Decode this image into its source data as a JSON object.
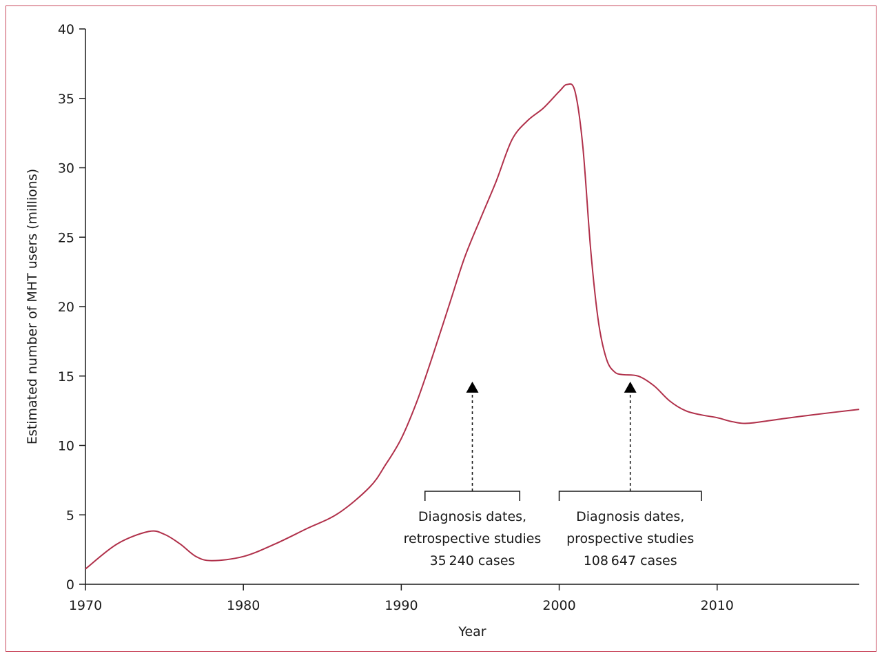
{
  "chart_data": {
    "type": "line",
    "title": "",
    "xlabel": "Year",
    "ylabel": "Estimated number of MHT users (millions)",
    "xlim": [
      1970,
      2019
    ],
    "ylim": [
      0,
      40
    ],
    "x_ticks": [
      1970,
      1980,
      1990,
      2000,
      2010
    ],
    "y_ticks": [
      0,
      5,
      10,
      15,
      20,
      25,
      30,
      35,
      40
    ],
    "grid": false,
    "line_color": "#b0304a",
    "series": [
      {
        "name": "",
        "x": [
          1970,
          1972,
          1974,
          1975,
          1976,
          1977,
          1978,
          1980,
          1982,
          1984,
          1986,
          1988,
          1989,
          1990,
          1991,
          1992,
          1993,
          1994,
          1995,
          1996,
          1997,
          1998,
          1999,
          2000,
          2000.5,
          2001,
          2001.5,
          2002,
          2002.5,
          2003,
          2003.5,
          2004,
          2005,
          2006,
          2007,
          2008,
          2009,
          2010,
          2011,
          2012,
          2014,
          2016,
          2019
        ],
        "y": [
          1.1,
          2.9,
          3.8,
          3.6,
          2.9,
          2.0,
          1.7,
          2.0,
          2.9,
          4.0,
          5.1,
          7.0,
          8.6,
          10.5,
          13.2,
          16.5,
          20.0,
          23.5,
          26.3,
          29.0,
          32.0,
          33.4,
          34.3,
          35.5,
          36.0,
          35.5,
          31.5,
          24.0,
          18.8,
          16.2,
          15.3,
          15.1,
          15.0,
          14.3,
          13.2,
          12.5,
          12.2,
          12.0,
          11.7,
          11.6,
          11.9,
          12.2,
          12.6
        ]
      }
    ],
    "annotations": [
      {
        "lines": [
          "Diagnosis dates,",
          "retrospective studies",
          "35 240 cases"
        ],
        "range": [
          1991.5,
          1997.5
        ],
        "arrow_x": 1994.5,
        "arrow_top_y": 14.5,
        "bracket_y": 6.7
      },
      {
        "lines": [
          "Diagnosis dates,",
          "prospective studies",
          "108 647 cases"
        ],
        "range": [
          2000,
          2009
        ],
        "arrow_x": 2004.5,
        "arrow_top_y": 14.5,
        "bracket_y": 6.7
      }
    ]
  }
}
